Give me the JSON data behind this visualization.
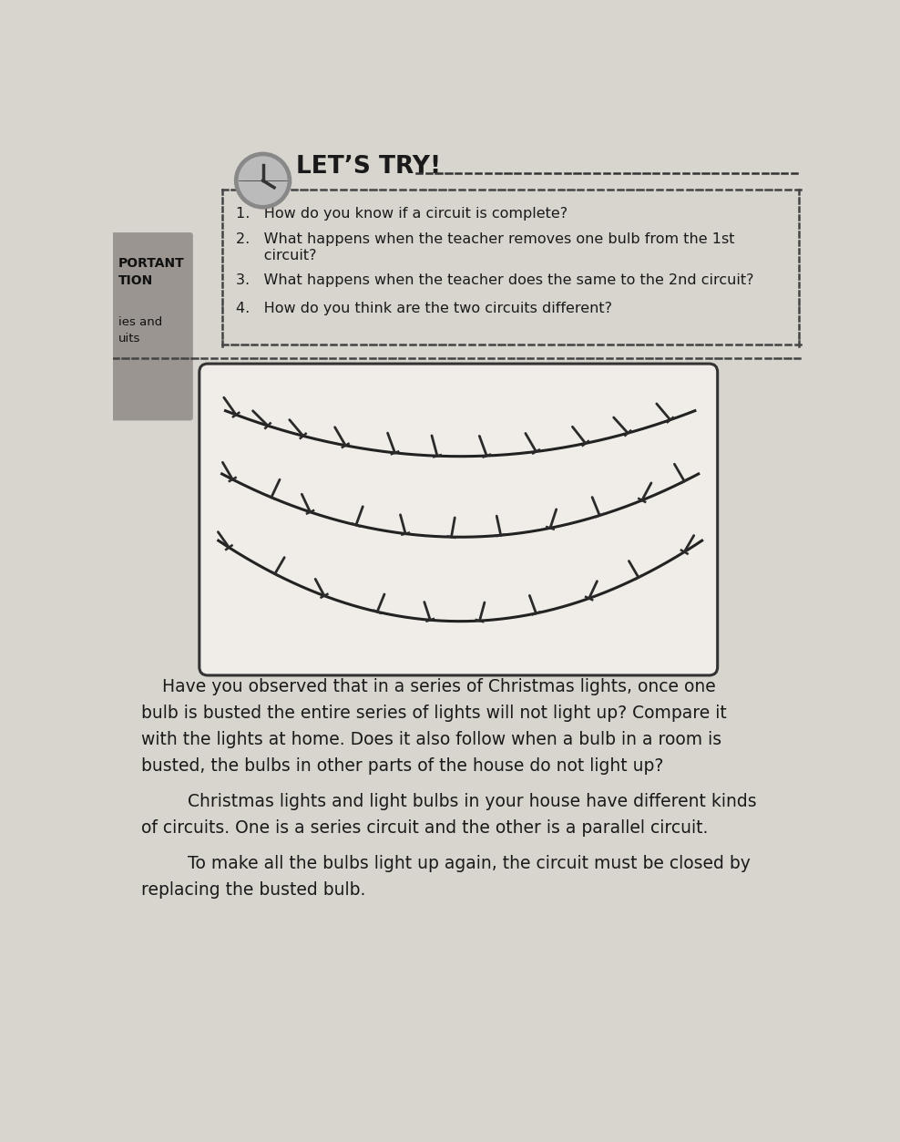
{
  "page_bg": "#d8d5ce",
  "content_bg": "#e8e5df",
  "text_color": "#1a1a1a",
  "sidebar_bg": "#9a9590",
  "title": "LET’S TRY!",
  "q1": "1.   How do you know if a circuit is complete?",
  "q2a": "2.   What happens when the teacher removes one bulb from the 1st",
  "q2b": "      circuit?",
  "q3": "3.   What happens when the teacher does the same to the 2nd circuit?",
  "q4": "4.   How do you think are the two circuits different?",
  "para1_line1": "Have you observed that in a series of Christmas lights, once one",
  "para1_line2": "bulb is busted the entire series of lights will not light up? Compare it",
  "para1_line3": "with the lights at home. Does it also follow when a bulb in a room is",
  "para1_line4": "busted, the bulbs in other parts of the house do not light up?",
  "para2_line1": "    Christmas lights and light bulbs in your house have different kinds",
  "para2_line2": "of circuits. One is a series circuit and the other is a parallel circuit.",
  "para3_line1": "    To make all the bulbs light up again, the circuit must be closed by",
  "para3_line2": "replacing the busted bulb."
}
